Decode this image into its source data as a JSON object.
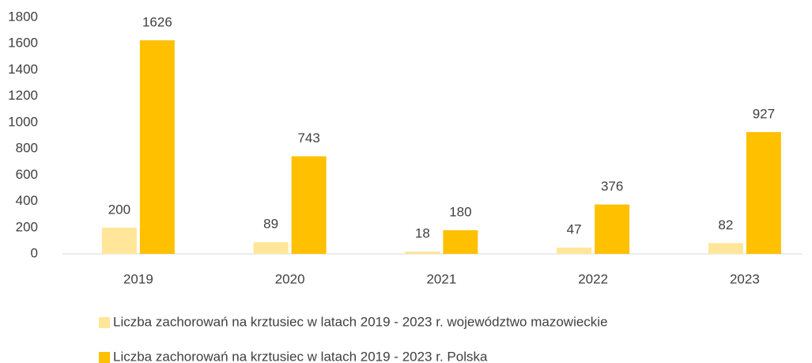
{
  "chart_data": {
    "type": "bar",
    "categories": [
      "2019",
      "2020",
      "2021",
      "2022",
      "2023"
    ],
    "series": [
      {
        "name": "Liczba zachorowań na krztusiec w latach 2019 - 2023 r. województwo mazowieckie",
        "color": "#FFE699",
        "values": [
          200,
          89,
          18,
          47,
          82
        ]
      },
      {
        "name": "Liczba zachorowań na krztusiec w latach 2019 - 2023 r. Polska",
        "color": "#FFC000",
        "values": [
          1626,
          743,
          180,
          376,
          927
        ]
      }
    ],
    "ylim": [
      0,
      1800
    ],
    "yticks": [
      0,
      200,
      400,
      600,
      800,
      1000,
      1200,
      1400,
      1600,
      1800
    ],
    "grid": false,
    "legend": "bottom"
  }
}
